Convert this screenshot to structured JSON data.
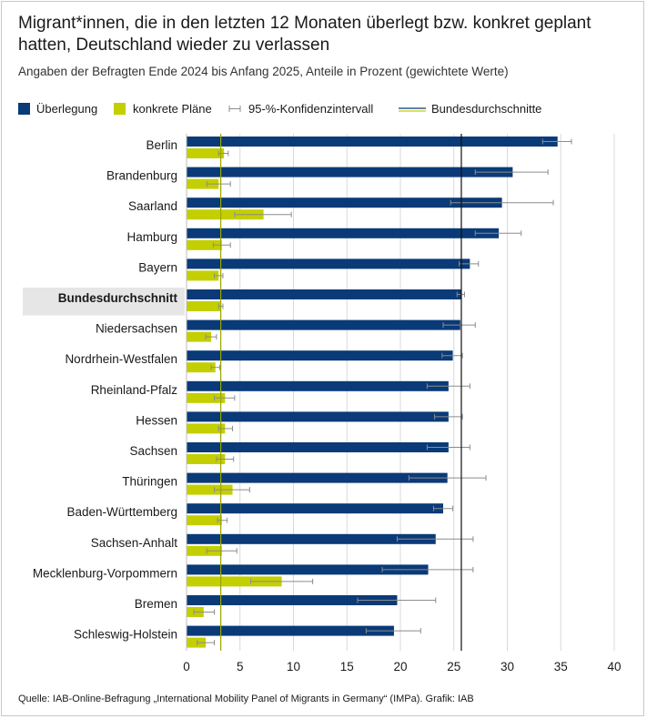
{
  "title": "Migrant*innen, die in den letzten 12 Monaten überlegt bzw. konkret geplant hatten, Deutschland wieder zu verlassen",
  "subtitle": "Angaben der Befragten Ende 2024 bis Anfang 2025, Anteile in Prozent (gewichtete Werte)",
  "legend": {
    "considering": "Überlegung",
    "plans": "konkrete Pläne",
    "ci": "95-%-Konfidenzintervall",
    "averages": "Bundesdurchschnitte"
  },
  "source": "Quelle: IAB-Online-Befragung „International Mobility Panel of Migrants in Germany“ (IMPa). Grafik: IAB",
  "colors": {
    "considering": "#0a3a78",
    "plans": "#c3cf00",
    "ci": "#8c8c8c",
    "highlight_bg": "#e6e6e6",
    "grid": "#d9d9d9"
  },
  "chart_data": {
    "type": "bar",
    "orientation": "horizontal",
    "xlim": [
      0,
      40
    ],
    "xticks": [
      0,
      5,
      10,
      15,
      20,
      25,
      30,
      35,
      40
    ],
    "highlight": "Bundesdurchschnitt",
    "averages": {
      "considering": 25.7,
      "plans": 3.2
    },
    "categories": [
      "Berlin",
      "Brandenburg",
      "Saarland",
      "Hamburg",
      "Bayern",
      "Bundesdurchschnitt",
      "Niedersachsen",
      "Nordrhein-Westfalen",
      "Rheinland-Pfalz",
      "Hessen",
      "Sachsen",
      "Thüringen",
      "Baden-Württemberg",
      "Sachsen-Anhalt",
      "Mecklenburg-Vorpommern",
      "Bremen",
      "Schleswig-Holstein"
    ],
    "series": [
      {
        "name": "Überlegung",
        "values": [
          34.7,
          30.5,
          29.5,
          29.2,
          26.5,
          25.7,
          25.6,
          24.9,
          24.5,
          24.5,
          24.5,
          24.4,
          24.0,
          23.3,
          22.6,
          19.7,
          19.4
        ],
        "ci_low": [
          33.3,
          27.0,
          24.7,
          27.0,
          25.5,
          25.3,
          24.0,
          23.9,
          22.5,
          23.2,
          22.5,
          20.8,
          23.1,
          19.7,
          18.3,
          16.0,
          16.8
        ],
        "ci_high": [
          36.0,
          33.8,
          34.3,
          31.3,
          27.3,
          26.0,
          27.0,
          25.8,
          26.5,
          25.8,
          26.5,
          28.0,
          24.9,
          26.8,
          26.8,
          23.3,
          21.9
        ]
      },
      {
        "name": "konkrete Pläne",
        "values": [
          3.5,
          3.0,
          7.2,
          3.3,
          3.0,
          3.2,
          2.3,
          2.7,
          3.6,
          3.6,
          3.6,
          4.3,
          3.3,
          3.3,
          8.9,
          1.6,
          1.8
        ],
        "ci_low": [
          3.0,
          1.9,
          4.5,
          2.5,
          2.6,
          3.0,
          1.8,
          2.3,
          2.6,
          3.0,
          2.8,
          2.6,
          2.9,
          1.9,
          6.0,
          0.7,
          1.0
        ],
        "ci_high": [
          3.9,
          4.1,
          9.8,
          4.1,
          3.4,
          3.4,
          2.8,
          3.1,
          4.5,
          4.3,
          4.4,
          5.9,
          3.8,
          4.7,
          11.8,
          2.6,
          2.6
        ]
      }
    ]
  }
}
